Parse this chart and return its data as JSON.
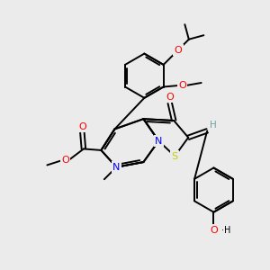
{
  "bg_color": "#ebebeb",
  "bond_color": "#000000",
  "atom_colors": {
    "O": "#ff0000",
    "N": "#0000ff",
    "S": "#cccc00",
    "H": "#70a0a0",
    "C": "#000000"
  },
  "figsize": [
    3.0,
    3.0
  ],
  "dpi": 100
}
